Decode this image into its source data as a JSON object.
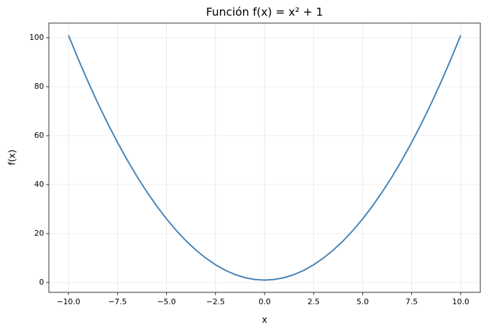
{
  "chart_data": {
    "type": "line",
    "title": "Función f(x) = x² + 1",
    "x_label": "x",
    "y_label": "f(x)",
    "x": [
      -10,
      -9.5,
      -9,
      -8.5,
      -8,
      -7.5,
      -7,
      -6.5,
      -6,
      -5.5,
      -5,
      -4.5,
      -4,
      -3.5,
      -3,
      -2.5,
      -2,
      -1.5,
      -1,
      -0.5,
      0,
      0.5,
      1,
      1.5,
      2,
      2.5,
      3,
      3.5,
      4,
      4.5,
      5,
      5.5,
      6,
      6.5,
      7,
      7.5,
      8,
      8.5,
      9,
      9.5,
      10
    ],
    "series": [
      {
        "color": "#4682b4",
        "values": [
          101,
          91.25,
          82,
          73.25,
          65,
          57.25,
          50,
          43.25,
          37,
          31.25,
          26,
          21.25,
          17,
          13.25,
          10,
          7.25,
          5,
          3.25,
          2,
          1.25,
          1,
          1.25,
          2,
          3.25,
          5,
          7.25,
          10,
          13.25,
          17,
          21.25,
          26,
          31.25,
          37,
          43.25,
          50,
          57.25,
          65,
          73.25,
          82,
          91.25,
          101
        ]
      }
    ],
    "xlim": [
      -11,
      11
    ],
    "ylim": [
      -4,
      106
    ],
    "xticks": [
      {
        "value": -10,
        "label": "−10.0"
      },
      {
        "value": -7.5,
        "label": "−7.5"
      },
      {
        "value": -5,
        "label": "−5.0"
      },
      {
        "value": -2.5,
        "label": "−2.5"
      },
      {
        "value": 0,
        "label": "0.0"
      },
      2.5,
      {
        "value": 5,
        "label": "5.0"
      },
      7.5,
      {
        "value": 10,
        "label": "10.0"
      }
    ],
    "yticks": [
      0,
      20,
      40,
      60,
      80,
      100
    ],
    "grid": true
  }
}
